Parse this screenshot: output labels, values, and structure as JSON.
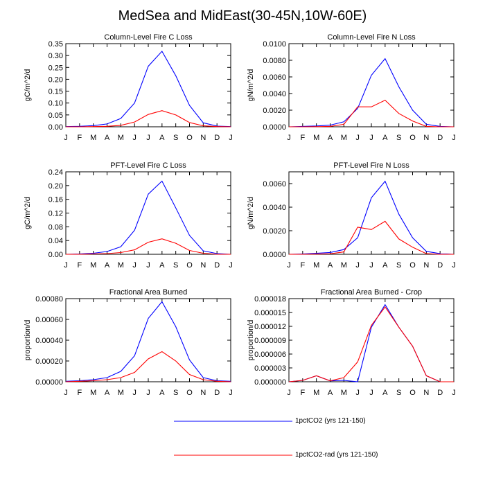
{
  "title": "MedSea and MidEast(30-45N,10W-60E)",
  "legend": [
    {
      "label": "1pctCO2 (yrs 121-150)",
      "color": "#0000ff"
    },
    {
      "label": "1pctCO2-rad (yrs 121-150)",
      "color": "#ff0000"
    }
  ],
  "chart_data": [
    {
      "type": "line",
      "title": "Column-Level Fire C Loss",
      "ylabel": "gC/m^2/d",
      "categories": [
        "J",
        "F",
        "M",
        "A",
        "M",
        "J",
        "J",
        "A",
        "S",
        "O",
        "N",
        "D",
        "J"
      ],
      "ylim": [
        0,
        0.35
      ],
      "yticks": [
        "0.00",
        "0.05",
        "0.10",
        "0.15",
        "0.20",
        "0.25",
        "0.30",
        "0.35"
      ],
      "series": [
        {
          "name": "1pctCO2 (yrs 121-150)",
          "color": "#0000ff",
          "values": [
            0.001,
            0.002,
            0.005,
            0.012,
            0.035,
            0.1,
            0.255,
            0.318,
            0.215,
            0.09,
            0.017,
            0.003,
            0.001
          ]
        },
        {
          "name": "1pctCO2-rad (yrs 121-150)",
          "color": "#ff0000",
          "values": [
            0.0,
            0.0,
            0.001,
            0.002,
            0.006,
            0.02,
            0.052,
            0.068,
            0.05,
            0.018,
            0.004,
            0.001,
            0.0
          ]
        }
      ]
    },
    {
      "type": "line",
      "title": "Column-Level Fire N Loss",
      "ylabel": "gN/m^2/d",
      "categories": [
        "J",
        "F",
        "M",
        "A",
        "M",
        "J",
        "J",
        "A",
        "S",
        "O",
        "N",
        "D",
        "J"
      ],
      "ylim": [
        0,
        0.01
      ],
      "yticks": [
        "0.0000",
        "0.0020",
        "0.0040",
        "0.0060",
        "0.0080",
        "0.0100"
      ],
      "series": [
        {
          "name": "1pctCO2 (yrs 121-150)",
          "color": "#0000ff",
          "values": [
            0.0,
            5e-05,
            0.0001,
            0.0002,
            0.0006,
            0.0022,
            0.0062,
            0.0082,
            0.0048,
            0.002,
            0.0003,
            5e-05,
            0.0
          ]
        },
        {
          "name": "1pctCO2-rad (yrs 121-150)",
          "color": "#ff0000",
          "values": [
            0.0,
            0.0,
            2e-05,
            5e-05,
            0.0003,
            0.0024,
            0.0024,
            0.0032,
            0.0016,
            0.0007,
            5e-05,
            0.0,
            0.0
          ]
        }
      ]
    },
    {
      "type": "line",
      "title": "PFT-Level Fire C Loss",
      "ylabel": "gC/m^2/d",
      "categories": [
        "J",
        "F",
        "M",
        "A",
        "M",
        "J",
        "J",
        "A",
        "S",
        "O",
        "N",
        "D",
        "J"
      ],
      "ylim": [
        0,
        0.24
      ],
      "yticks": [
        "0.00",
        "0.04",
        "0.08",
        "0.12",
        "0.16",
        "0.20",
        "0.24"
      ],
      "series": [
        {
          "name": "1pctCO2 (yrs 121-150)",
          "color": "#0000ff",
          "values": [
            0.0,
            0.001,
            0.003,
            0.008,
            0.022,
            0.07,
            0.175,
            0.213,
            0.135,
            0.055,
            0.01,
            0.002,
            0.0
          ]
        },
        {
          "name": "1pctCO2-rad (yrs 121-150)",
          "color": "#ff0000",
          "values": [
            0.0,
            0.0,
            0.001,
            0.002,
            0.005,
            0.013,
            0.035,
            0.045,
            0.032,
            0.011,
            0.003,
            0.0,
            0.0
          ]
        }
      ]
    },
    {
      "type": "line",
      "title": "PFT-Level Fire N Loss",
      "ylabel": "gN/m^2/d",
      "categories": [
        "J",
        "F",
        "M",
        "A",
        "M",
        "J",
        "J",
        "A",
        "S",
        "O",
        "N",
        "D",
        "J"
      ],
      "ylim": [
        0,
        0.007
      ],
      "yticks": [
        "0.0000",
        "0.0020",
        "0.0040",
        "0.0060"
      ],
      "series": [
        {
          "name": "1pctCO2 (yrs 121-150)",
          "color": "#0000ff",
          "values": [
            0.0,
            3e-05,
            8e-05,
            0.00015,
            0.0004,
            0.0014,
            0.0048,
            0.0062,
            0.0034,
            0.0014,
            0.00025,
            5e-05,
            0.0
          ]
        },
        {
          "name": "1pctCO2-rad (yrs 121-150)",
          "color": "#ff0000",
          "values": [
            0.0,
            0.0,
            2e-05,
            4e-05,
            0.0002,
            0.0023,
            0.0021,
            0.0028,
            0.0013,
            0.0006,
            5e-05,
            0.0,
            0.0
          ]
        }
      ]
    },
    {
      "type": "line",
      "title": "Fractional Area Burned",
      "ylabel": "proportion/d",
      "categories": [
        "J",
        "F",
        "M",
        "A",
        "M",
        "J",
        "J",
        "A",
        "S",
        "O",
        "N",
        "D",
        "J"
      ],
      "ylim": [
        0,
        0.0008
      ],
      "yticks": [
        "0.00000",
        "0.00020",
        "0.00040",
        "0.00060",
        "0.00080"
      ],
      "series": [
        {
          "name": "1pctCO2 (yrs 121-150)",
          "color": "#0000ff",
          "values": [
            5e-06,
            1e-05,
            2e-05,
            4e-05,
            0.0001,
            0.00025,
            0.00061,
            0.00077,
            0.00053,
            0.00021,
            4e-05,
            1e-05,
            5e-06
          ]
        },
        {
          "name": "1pctCO2-rad (yrs 121-150)",
          "color": "#ff0000",
          "values": [
            0.0,
            5e-06,
            1e-05,
            2e-05,
            4e-05,
            9e-05,
            0.00022,
            0.00029,
            0.0002,
            7e-05,
            2e-05,
            5e-06,
            0.0
          ]
        }
      ]
    },
    {
      "type": "line",
      "title": "Fractional Area Burned - Crop",
      "ylabel": "proportion/d",
      "categories": [
        "J",
        "F",
        "M",
        "A",
        "M",
        "J",
        "J",
        "A",
        "S",
        "O",
        "N",
        "D",
        "J"
      ],
      "ylim": [
        0,
        1.8e-05
      ],
      "yticks": [
        "0.000000",
        "0.000003",
        "0.000006",
        "0.000009",
        "0.000012",
        "0.000015",
        "0.000018"
      ],
      "series": [
        {
          "name": "1pctCO2 (yrs 121-150)",
          "color": "#0000ff",
          "values": [
            0.0,
            3e-07,
            1.3e-06,
            2e-07,
            3e-07,
            0.0,
            1.18e-05,
            1.67e-05,
            1.18e-05,
            7.7e-06,
            1.3e-06,
            0.0,
            0.0
          ]
        },
        {
          "name": "1pctCO2-rad (yrs 121-150)",
          "color": "#ff0000",
          "values": [
            0.0,
            3e-07,
            1.3e-06,
            2e-07,
            9e-07,
            4.3e-06,
            1.22e-05,
            1.62e-05,
            1.18e-05,
            7.7e-06,
            1.3e-06,
            0.0,
            0.0
          ]
        }
      ]
    }
  ]
}
